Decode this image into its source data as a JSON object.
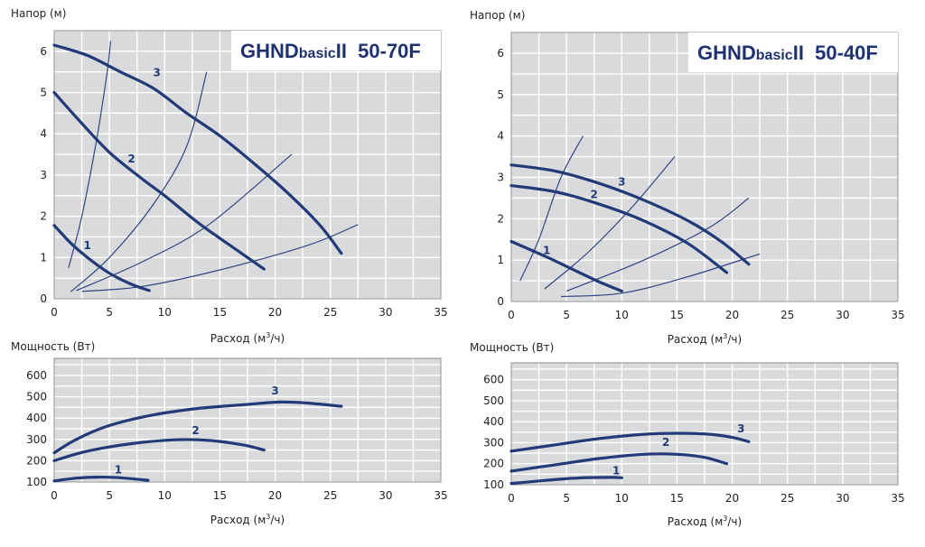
{
  "colors": {
    "grid_bg": "#d9dadb",
    "grid_line": "#ffffff",
    "curve": "#233a78",
    "system": "#2f4683",
    "text": "#222222",
    "title": "#1f3270"
  },
  "chart_data": [
    {
      "type": "line",
      "id": "head-50-70F",
      "title_main": "GHND",
      "title_sub": "basic",
      "title_tail": "II  50-70F",
      "ylabel": "Напор (м)",
      "xlabel_prefix": "Расход (м",
      "xlabel_sup": "3",
      "xlabel_suffix": "/ч)",
      "xlim": [
        0,
        35
      ],
      "ylim": [
        0,
        6.5
      ],
      "xticks": [
        0,
        5,
        10,
        15,
        20,
        25,
        30,
        35
      ],
      "yticks": [
        0,
        1,
        2,
        3,
        4,
        5,
        6
      ],
      "series": [
        {
          "name": "1",
          "label_at": [
            3,
            1.2
          ],
          "points": [
            [
              0,
              1.78
            ],
            [
              1.5,
              1.35
            ],
            [
              3,
              1.0
            ],
            [
              5,
              0.62
            ],
            [
              7,
              0.35
            ],
            [
              8.6,
              0.2
            ]
          ]
        },
        {
          "name": "2",
          "label_at": [
            7,
            3.3
          ],
          "points": [
            [
              0,
              5.0
            ],
            [
              2,
              4.4
            ],
            [
              5,
              3.55
            ],
            [
              8,
              2.9
            ],
            [
              10,
              2.5
            ],
            [
              13,
              1.85
            ],
            [
              16,
              1.28
            ],
            [
              19,
              0.72
            ]
          ]
        },
        {
          "name": "3",
          "label_at": [
            9.3,
            5.4
          ],
          "points": [
            [
              0,
              6.15
            ],
            [
              3,
              5.9
            ],
            [
              6,
              5.5
            ],
            [
              9,
              5.1
            ],
            [
              12,
              4.5
            ],
            [
              15,
              3.95
            ],
            [
              18,
              3.3
            ],
            [
              21,
              2.6
            ],
            [
              24,
              1.8
            ],
            [
              26,
              1.1
            ]
          ]
        }
      ],
      "system_curves": [
        [
          [
            1.3,
            0.75
          ],
          [
            2.5,
            2.0
          ],
          [
            3.8,
            3.8
          ],
          [
            4.8,
            5.5
          ],
          [
            5.1,
            6.25
          ]
        ],
        [
          [
            1.5,
            0.17
          ],
          [
            5,
            1.0
          ],
          [
            9,
            2.3
          ],
          [
            12,
            3.7
          ],
          [
            13.8,
            5.5
          ]
        ],
        [
          [
            2,
            0.2
          ],
          [
            8,
            0.9
          ],
          [
            14,
            1.8
          ],
          [
            21.5,
            3.5
          ]
        ],
        [
          [
            2.5,
            0.18
          ],
          [
            8,
            0.3
          ],
          [
            15,
            0.7
          ],
          [
            23,
            1.3
          ],
          [
            27.5,
            1.8
          ]
        ]
      ]
    },
    {
      "type": "line",
      "id": "head-50-40F",
      "title_main": "GHND",
      "title_sub": "basic",
      "title_tail": "II  50-40F",
      "ylabel": "Напор (м)",
      "xlabel_prefix": "Расход (м",
      "xlabel_sup": "3",
      "xlabel_suffix": "/ч)",
      "xlim": [
        0,
        35
      ],
      "ylim": [
        0,
        6.5
      ],
      "xticks": [
        0,
        5,
        10,
        15,
        20,
        25,
        30,
        35
      ],
      "yticks": [
        0,
        1,
        2,
        3,
        4,
        5,
        6
      ],
      "series": [
        {
          "name": "1",
          "label_at": [
            3.2,
            1.15
          ],
          "points": [
            [
              0,
              1.45
            ],
            [
              3,
              1.1
            ],
            [
              6,
              0.72
            ],
            [
              8,
              0.47
            ],
            [
              10,
              0.25
            ]
          ]
        },
        {
          "name": "2",
          "label_at": [
            7.5,
            2.5
          ],
          "points": [
            [
              0,
              2.8
            ],
            [
              4,
              2.65
            ],
            [
              8,
              2.35
            ],
            [
              12,
              1.95
            ],
            [
              16,
              1.4
            ],
            [
              19.5,
              0.7
            ]
          ]
        },
        {
          "name": "3",
          "label_at": [
            10,
            2.8
          ],
          "points": [
            [
              0,
              3.3
            ],
            [
              4,
              3.15
            ],
            [
              8,
              2.85
            ],
            [
              12,
              2.45
            ],
            [
              16,
              1.95
            ],
            [
              19,
              1.45
            ],
            [
              21.5,
              0.9
            ]
          ]
        }
      ],
      "system_curves": [
        [
          [
            0.8,
            0.5
          ],
          [
            2.5,
            1.5
          ],
          [
            4.5,
            3.0
          ],
          [
            6.5,
            4.0
          ]
        ],
        [
          [
            3,
            0.3
          ],
          [
            7,
            1.2
          ],
          [
            11,
            2.3
          ],
          [
            14.8,
            3.5
          ]
        ],
        [
          [
            5,
            0.25
          ],
          [
            12,
            1.0
          ],
          [
            18,
            1.8
          ],
          [
            21.5,
            2.5
          ]
        ],
        [
          [
            4.5,
            0.12
          ],
          [
            10,
            0.2
          ],
          [
            16,
            0.6
          ],
          [
            22.5,
            1.15
          ]
        ]
      ]
    },
    {
      "type": "line",
      "id": "power-50-70F",
      "ylabel": "Мощность (Вт)",
      "xlabel_prefix": "Расход (м",
      "xlabel_sup": "3",
      "xlabel_suffix": "/ч)",
      "xlim": [
        0,
        35
      ],
      "ylim": [
        100,
        680
      ],
      "xticks": [
        0,
        5,
        10,
        15,
        20,
        25,
        30,
        35
      ],
      "yticks": [
        100,
        200,
        300,
        400,
        500,
        600
      ],
      "series": [
        {
          "name": "1",
          "label_at": [
            5.8,
            140
          ],
          "points": [
            [
              0,
              105
            ],
            [
              2,
              118
            ],
            [
              4,
              123
            ],
            [
              6,
              120
            ],
            [
              8.5,
              108
            ]
          ]
        },
        {
          "name": "2",
          "label_at": [
            12.8,
            325
          ],
          "points": [
            [
              0,
              200
            ],
            [
              3,
              245
            ],
            [
              7,
              280
            ],
            [
              11,
              298
            ],
            [
              14,
              295
            ],
            [
              17,
              275
            ],
            [
              19,
              250
            ]
          ]
        },
        {
          "name": "3",
          "label_at": [
            20,
            510
          ],
          "points": [
            [
              0,
              237
            ],
            [
              2,
              300
            ],
            [
              5,
              365
            ],
            [
              9,
              415
            ],
            [
              13,
              445
            ],
            [
              17,
              462
            ],
            [
              20.5,
              475
            ],
            [
              23,
              470
            ],
            [
              26,
              455
            ]
          ]
        }
      ]
    },
    {
      "type": "line",
      "id": "power-50-40F",
      "ylabel": "Мощность (Вт)",
      "xlabel_prefix": "Расход (м",
      "xlabel_sup": "3",
      "xlabel_suffix": "/ч)",
      "xlim": [
        0,
        35
      ],
      "ylim": [
        100,
        680
      ],
      "xticks": [
        0,
        5,
        10,
        15,
        20,
        25,
        30,
        35
      ],
      "yticks": [
        100,
        200,
        300,
        400,
        500,
        600
      ],
      "series": [
        {
          "name": "1",
          "label_at": [
            9.5,
            150
          ],
          "points": [
            [
              0,
              106
            ],
            [
              3,
              120
            ],
            [
              6,
              132
            ],
            [
              9,
              135
            ],
            [
              10,
              133
            ]
          ]
        },
        {
          "name": "2",
          "label_at": [
            14,
            285
          ],
          "points": [
            [
              0,
              165
            ],
            [
              4,
              195
            ],
            [
              8,
              225
            ],
            [
              12,
              245
            ],
            [
              15,
              245
            ],
            [
              17.5,
              230
            ],
            [
              19.5,
              200
            ]
          ]
        },
        {
          "name": "3",
          "label_at": [
            20.8,
            350
          ],
          "points": [
            [
              0,
              260
            ],
            [
              4,
              290
            ],
            [
              8,
              320
            ],
            [
              12,
              340
            ],
            [
              15,
              345
            ],
            [
              18,
              340
            ],
            [
              20,
              325
            ],
            [
              21.5,
              305
            ]
          ]
        }
      ]
    }
  ]
}
